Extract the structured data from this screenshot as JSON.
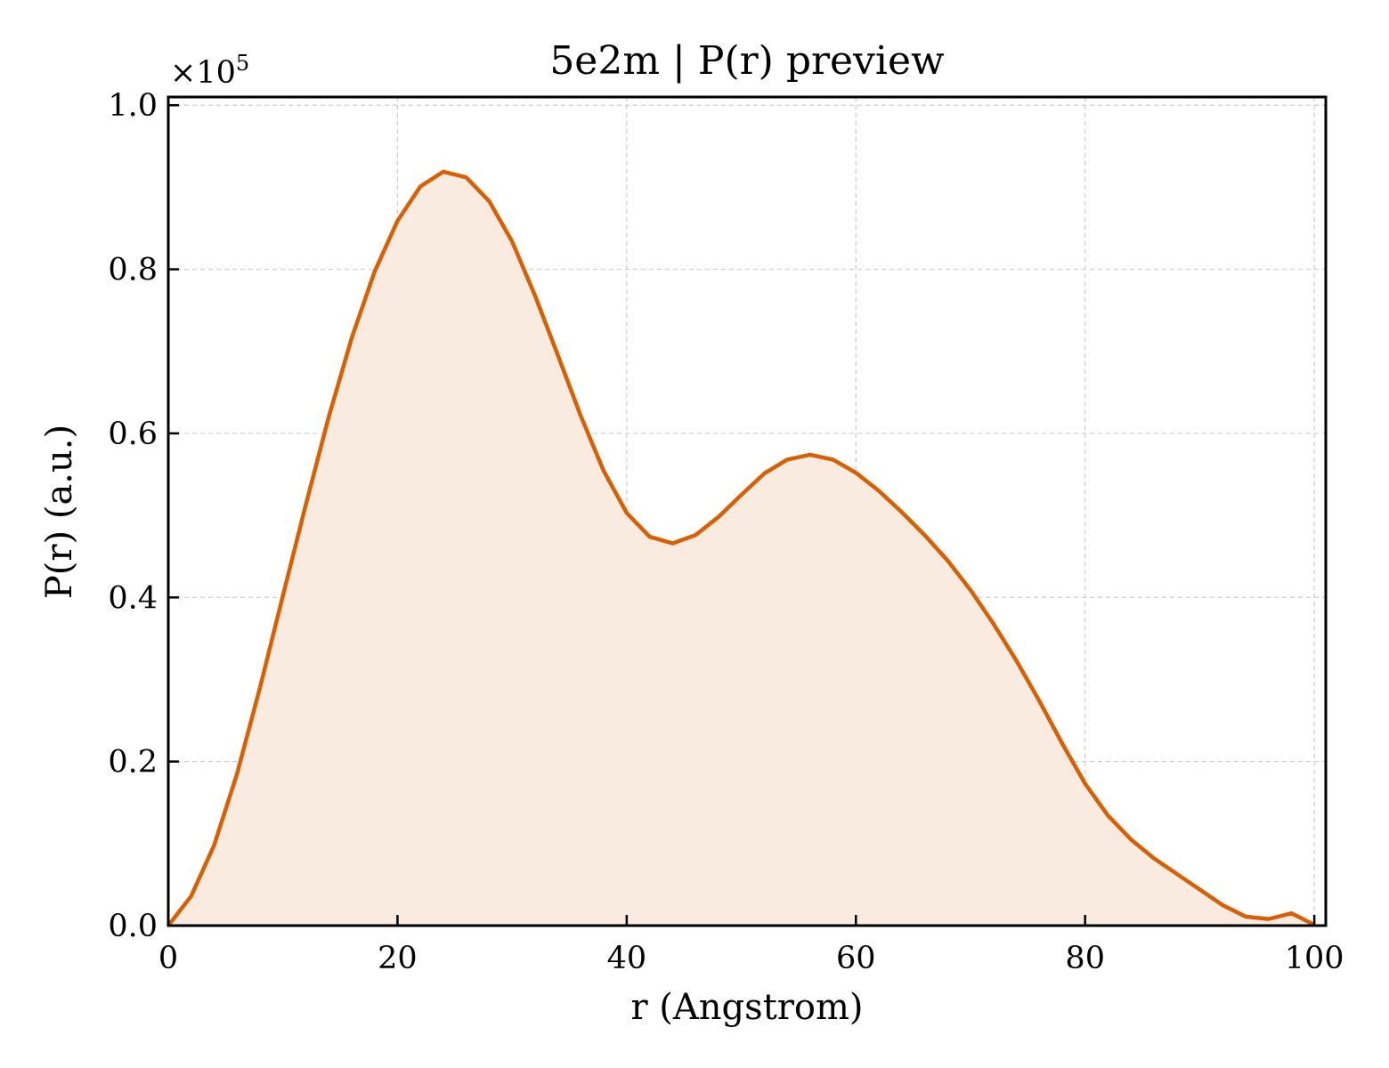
{
  "chart_data": {
    "type": "area",
    "title": "5e2m | P(r) preview",
    "xlabel": "r (Angstrom)",
    "ylabel": "P(r) (a.u.)",
    "y_offset_label": "×10",
    "y_offset_exponent": "5",
    "y_scale": 100000,
    "xlim": [
      0,
      101
    ],
    "ylim": [
      0,
      1.01
    ],
    "x_ticks": [
      0,
      20,
      40,
      60,
      80,
      100
    ],
    "x_tick_labels": [
      "0",
      "20",
      "40",
      "60",
      "80",
      "100"
    ],
    "y_ticks": [
      0.0,
      0.2,
      0.4,
      0.6,
      0.8,
      1.0
    ],
    "y_tick_labels": [
      "0.0",
      "0.2",
      "0.4",
      "0.6",
      "0.8",
      "1.0"
    ],
    "grid": true,
    "legend": "none",
    "line_color": "#d95f02",
    "fill_color": "#f9ebe0",
    "series": [
      {
        "x": [
          0,
          2,
          4,
          6,
          8,
          10,
          12,
          14,
          16,
          18,
          20,
          22,
          24,
          26,
          28,
          30,
          32,
          34,
          36,
          38,
          40,
          42,
          44,
          46,
          48,
          50,
          52,
          54,
          56,
          58,
          60,
          62,
          64,
          66,
          68,
          70,
          72,
          74,
          76,
          78,
          80,
          82,
          84,
          86,
          88,
          90,
          92,
          94,
          96,
          98,
          100
        ],
        "values": [
          0.0,
          0.036,
          0.098,
          0.185,
          0.29,
          0.402,
          0.513,
          0.62,
          0.716,
          0.797,
          0.859,
          0.901,
          0.919,
          0.912,
          0.883,
          0.834,
          0.768,
          0.695,
          0.621,
          0.554,
          0.503,
          0.474,
          0.466,
          0.476,
          0.498,
          0.525,
          0.551,
          0.568,
          0.574,
          0.568,
          0.552,
          0.53,
          0.504,
          0.476,
          0.445,
          0.409,
          0.368,
          0.323,
          0.274,
          0.222,
          0.173,
          0.134,
          0.105,
          0.082,
          0.063,
          0.044,
          0.025,
          0.011,
          0.008,
          0.015,
          0.001
        ]
      }
    ]
  }
}
